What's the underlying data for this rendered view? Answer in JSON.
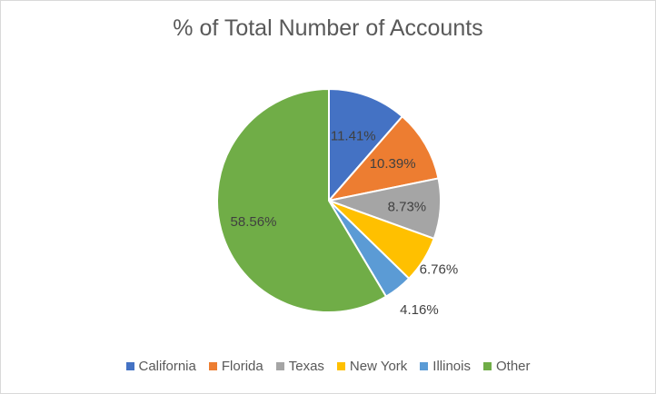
{
  "chart_data": {
    "type": "pie",
    "title": "% of Total Number of Accounts",
    "categories": [
      "California",
      "Florida",
      "Texas",
      "New York",
      "Illinois",
      "Other"
    ],
    "values": [
      11.41,
      10.39,
      8.73,
      6.76,
      4.16,
      58.56
    ],
    "labels": [
      "11.41%",
      "10.39%",
      "8.73%",
      "6.76%",
      "4.16%",
      "58.56%"
    ],
    "colors": [
      "#4472c4",
      "#ed7d31",
      "#a5a5a5",
      "#ffc000",
      "#5b9bd5",
      "#70ad47"
    ],
    "legend_position": "bottom"
  }
}
